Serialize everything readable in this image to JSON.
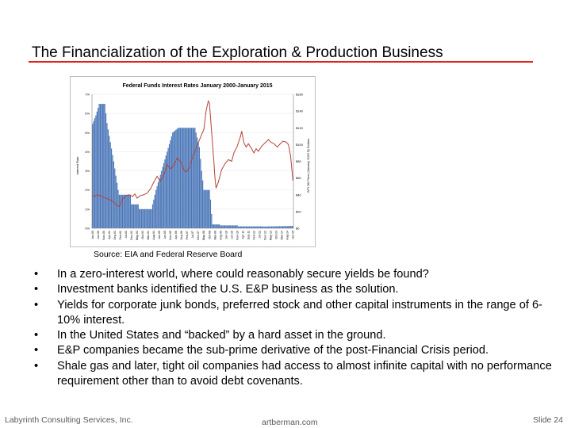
{
  "slide": {
    "title": "The Financialization of the Exploration & Production Business",
    "source": "Source:  EIA and Federal Reserve Board",
    "bullets": [
      "In a zero-interest world, where could reasonably secure yields be found?",
      "Investment banks identified the U.S. E&P business as the solution.",
      "Yields for corporate junk bonds, preferred stock and other capital instruments in the range of 6-10% interest.",
      "In the United States and “backed” by a hard asset in the ground.",
      "E&P companies became the sub-prime derivative of the post-Financial Crisis period.",
      "Shale gas and later, tight oil companies had access to almost infinite capital with no performance requirement other than to avoid debt covenants."
    ],
    "bullet_symbol": "•",
    "footer": {
      "left": "Labyrinth Consulting Services, Inc.",
      "center": "artberman.com",
      "right": "Slide 24"
    },
    "colors": {
      "title_rule": "#e0221e",
      "bars": "#4a76b8",
      "line": "#b5433a"
    }
  },
  "chart_data": {
    "type": "bar",
    "title": "Federal Funds Interest Rates January 2000-January 2015",
    "ylabel": "Interest Rate",
    "y2label": "WTI Oil Price (January 2015 $) Dollars",
    "ylim": [
      0,
      7
    ],
    "y2lim": [
      0,
      160
    ],
    "yticks": [
      "0%",
      "1%",
      "2%",
      "3%",
      "4%",
      "5%",
      "6%",
      "7%"
    ],
    "y2ticks": [
      "$0",
      "$20",
      "$40",
      "$60",
      "$80",
      "$100",
      "$120",
      "$140",
      "$160"
    ],
    "x_ticks": [
      "Jan-00",
      "Jun-00",
      "Nov-00",
      "Apr-01",
      "Sep-01",
      "Feb-02",
      "Jul-02",
      "Dec-02",
      "May-03",
      "Oct-03",
      "Mar-04",
      "Aug-04",
      "Jan-05",
      "Jun-05",
      "Nov-05",
      "Apr-06",
      "Sep-06",
      "Feb-07",
      "Jul-07",
      "Dec-07",
      "May-08",
      "Oct-08",
      "Mar-09",
      "Aug-09",
      "Jan-10",
      "Jun-10",
      "Nov-10",
      "Apr-11",
      "Sep-11",
      "Feb-12",
      "Jul-12",
      "Dec-12",
      "May-13",
      "Oct-13",
      "Mar-14",
      "Aug-14",
      "Jan-15"
    ],
    "bar_series": {
      "name": "",
      "months": 181,
      "anchors": [
        [
          0,
          5.45
        ],
        [
          3,
          5.9
        ],
        [
          6,
          6.5
        ],
        [
          11,
          6.5
        ],
        [
          13,
          5.5
        ],
        [
          16,
          4.5
        ],
        [
          19,
          3.5
        ],
        [
          23,
          2.0
        ],
        [
          24,
          1.75
        ],
        [
          34,
          1.75
        ],
        [
          35,
          1.25
        ],
        [
          41,
          1.25
        ],
        [
          42,
          1.0
        ],
        [
          53,
          1.0
        ],
        [
          54,
          1.25
        ],
        [
          57,
          2.0
        ],
        [
          62,
          3.0
        ],
        [
          67,
          4.0
        ],
        [
          72,
          5.0
        ],
        [
          77,
          5.25
        ],
        [
          92,
          5.25
        ],
        [
          94,
          4.75
        ],
        [
          96,
          4.25
        ],
        [
          98,
          3.0
        ],
        [
          100,
          2.0
        ],
        [
          105,
          2.0
        ],
        [
          106,
          1.5
        ],
        [
          107,
          0.75
        ],
        [
          108,
          0.2
        ],
        [
          114,
          0.2
        ],
        [
          115,
          0.15
        ],
        [
          130,
          0.15
        ],
        [
          131,
          0.1
        ],
        [
          152,
          0.1
        ],
        [
          153,
          0.09
        ],
        [
          180,
          0.12
        ]
      ]
    },
    "line_series": {
      "name": "",
      "anchors": [
        [
          0,
          38
        ],
        [
          5,
          40
        ],
        [
          10,
          37
        ],
        [
          12,
          36
        ],
        [
          17,
          33
        ],
        [
          20,
          30
        ],
        [
          22,
          27
        ],
        [
          24,
          26
        ],
        [
          27,
          35
        ],
        [
          30,
          39
        ],
        [
          33,
          40
        ],
        [
          36,
          38
        ],
        [
          38,
          41
        ],
        [
          40,
          36
        ],
        [
          43,
          39
        ],
        [
          46,
          40
        ],
        [
          49,
          42
        ],
        [
          52,
          47
        ],
        [
          55,
          55
        ],
        [
          58,
          62
        ],
        [
          61,
          56
        ],
        [
          64,
          64
        ],
        [
          67,
          76
        ],
        [
          70,
          71
        ],
        [
          73,
          75
        ],
        [
          76,
          84
        ],
        [
          79,
          80
        ],
        [
          82,
          70
        ],
        [
          84,
          67
        ],
        [
          87,
          72
        ],
        [
          90,
          86
        ],
        [
          92,
          92
        ],
        [
          95,
          102
        ],
        [
          98,
          112
        ],
        [
          100,
          118
        ],
        [
          102,
          140
        ],
        [
          104,
          152
        ],
        [
          105,
          150
        ],
        [
          107,
          115
        ],
        [
          109,
          80
        ],
        [
          110,
          60
        ],
        [
          111,
          48
        ],
        [
          113,
          55
        ],
        [
          116,
          70
        ],
        [
          119,
          77
        ],
        [
          122,
          82
        ],
        [
          125,
          80
        ],
        [
          127,
          90
        ],
        [
          130,
          98
        ],
        [
          133,
          110
        ],
        [
          134,
          116
        ],
        [
          136,
          102
        ],
        [
          138,
          97
        ],
        [
          140,
          101
        ],
        [
          143,
          95
        ],
        [
          145,
          90
        ],
        [
          147,
          95
        ],
        [
          149,
          92
        ],
        [
          152,
          98
        ],
        [
          155,
          102
        ],
        [
          158,
          106
        ],
        [
          160,
          103
        ],
        [
          163,
          101
        ],
        [
          166,
          97
        ],
        [
          168,
          100
        ],
        [
          171,
          104
        ],
        [
          174,
          103
        ],
        [
          176,
          100
        ],
        [
          178,
          86
        ],
        [
          180,
          57
        ]
      ]
    }
  }
}
